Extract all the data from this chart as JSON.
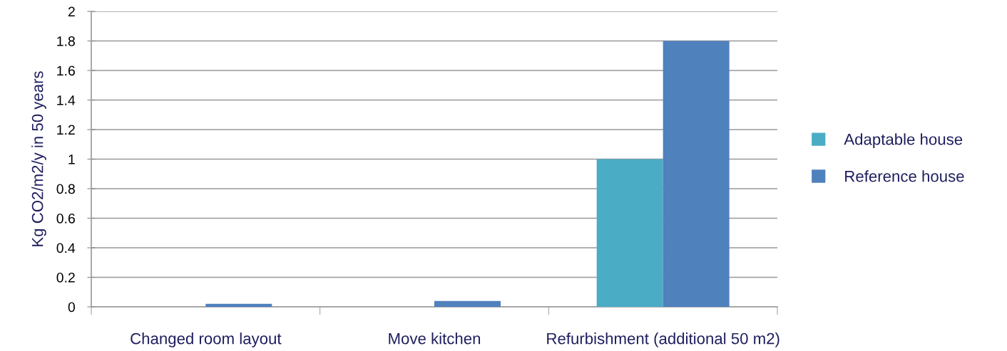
{
  "chart_data": {
    "type": "bar",
    "ylabel": "Kg CO2/m2/y in 50 years",
    "categories": [
      "Changed room layout",
      "Move kitchen",
      "Refurbishment (additional 50 m2)"
    ],
    "series": [
      {
        "name": "Adaptable house",
        "color": "#4bacc6",
        "values": [
          0,
          0,
          1.0
        ]
      },
      {
        "name": "Reference house",
        "color": "#4f81bd",
        "values": [
          0.02,
          0.04,
          1.8
        ]
      }
    ],
    "ylim": [
      0,
      2
    ],
    "yticks": [
      0,
      0.2,
      0.4,
      0.6,
      0.8,
      1,
      1.2,
      1.4,
      1.6,
      1.8,
      2
    ],
    "grid": "y",
    "legend": "right"
  }
}
